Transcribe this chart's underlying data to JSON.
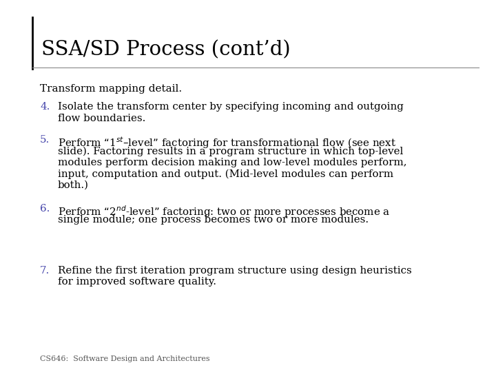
{
  "title": "SSA/SD Process (cont’d)",
  "subtitle": "Transform mapping detail.",
  "background_color": "#ffffff",
  "title_color": "#000000",
  "number_color": "#4444aa",
  "text_color": "#000000",
  "footer_color": "#555555",
  "footer": "CS646:  Software Design and Architectures",
  "items": [
    {
      "number": "4.",
      "lines": [
        "Isolate the transform center by specifying incoming and outgoing",
        "flow boundaries."
      ],
      "sup_line": -1,
      "sup_info": null
    },
    {
      "number": "5.",
      "lines": [
        "Perform “1$^{st}$–level” factoring for transformational flow (see next",
        "slide). Factoring results in a program structure in which top-level",
        "modules perform decision making and low-level modules perform,",
        "input, computation and output. (Mid-level modules can perform",
        "both.)"
      ],
      "sup_line": -1,
      "sup_info": null
    },
    {
      "number": "6.",
      "lines": [
        "Perform “2$^{nd}$-level” factoring: two or more processes become a",
        "single module; one process becomes two or more modules."
      ],
      "sup_line": -1,
      "sup_info": null
    },
    {
      "number": "7.",
      "lines": [
        "Refine the first iteration program structure using design heuristics",
        "for improved software quality."
      ],
      "sup_line": -1,
      "sup_info": null
    }
  ]
}
